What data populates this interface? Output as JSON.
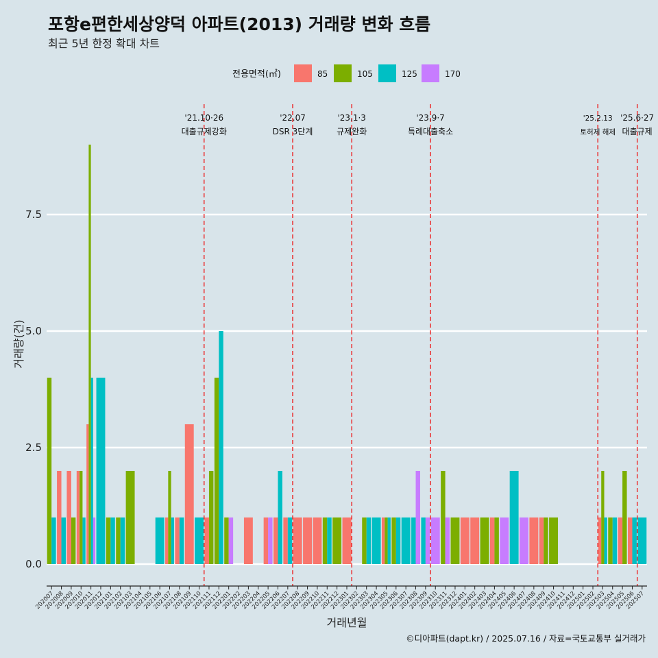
{
  "title": "포항e편한세상양덕 아파트(2013) 거래량 변화 흐름",
  "subtitle": "최근 5년 한정 확대 차트",
  "caption": "©디아파트(dapt.kr) / 2025.07.16 / 자료=국토교통부 실거래가",
  "legend": {
    "title": "전용면적(㎡)",
    "items": [
      {
        "label": "85",
        "color": "#f8766d"
      },
      {
        "label": "105",
        "color": "#7cae00"
      },
      {
        "label": "125",
        "color": "#00bfc4"
      },
      {
        "label": "170",
        "color": "#c77cff"
      }
    ]
  },
  "chart_data": {
    "type": "bar",
    "xlabel": "거래년월",
    "ylabel": "거래량(건)",
    "ylim": [
      -0.4,
      9.4
    ],
    "yticks": [
      "0.0",
      "2.5",
      "5.0",
      "7.5"
    ],
    "ytick_values": [
      0,
      2.5,
      5.0,
      7.5
    ],
    "grid": true,
    "legend_position": "top",
    "categories": [
      "202007",
      "202008",
      "202009",
      "202010",
      "202011",
      "202012",
      "202101",
      "202102",
      "202103",
      "202104",
      "202105",
      "202106",
      "202107",
      "202108",
      "202109",
      "202110",
      "202111",
      "202112",
      "202201",
      "202202",
      "202203",
      "202204",
      "202205",
      "202206",
      "202207",
      "202208",
      "202209",
      "202210",
      "202211",
      "202212",
      "202301",
      "202302",
      "202303",
      "202304",
      "202305",
      "202306",
      "202307",
      "202308",
      "202309",
      "202310",
      "202311",
      "202312",
      "202401",
      "202402",
      "202403",
      "202404",
      "202405",
      "202406",
      "202407",
      "202408",
      "202409",
      "202410",
      "202411",
      "202412",
      "202501",
      "202502",
      "202503",
      "202504",
      "202505",
      "202506",
      "202507"
    ],
    "series": [
      {
        "name": "85",
        "values": [
          0,
          2,
          2,
          2,
          3,
          0,
          0,
          0,
          0,
          0,
          0,
          0,
          1,
          1,
          3,
          0,
          1,
          0,
          0,
          0,
          1,
          0,
          1,
          1,
          1,
          1,
          1,
          1,
          0,
          0,
          1,
          0,
          0,
          0,
          1,
          0,
          0,
          0,
          0,
          0,
          0,
          0,
          1,
          1,
          0,
          1,
          0,
          0,
          0,
          1,
          1,
          0,
          0,
          0,
          0,
          0,
          1,
          0,
          1,
          1,
          0
        ]
      },
      {
        "name": "105",
        "values": [
          4,
          0,
          1,
          2,
          9,
          0,
          1,
          1,
          2,
          0,
          0,
          0,
          2,
          0,
          0,
          0,
          2,
          4,
          1,
          0,
          0,
          0,
          0,
          0,
          0,
          0,
          0,
          0,
          1,
          1,
          0,
          0,
          1,
          0,
          1,
          1,
          0,
          0,
          0,
          0,
          2,
          1,
          0,
          0,
          1,
          1,
          0,
          0,
          0,
          0,
          1,
          1,
          0,
          0,
          0,
          0,
          2,
          1,
          2,
          0,
          0
        ]
      },
      {
        "name": "125",
        "values": [
          1,
          1,
          0,
          1,
          4,
          4,
          1,
          1,
          0,
          0,
          0,
          1,
          1,
          1,
          0,
          1,
          0,
          5,
          0,
          0,
          0,
          0,
          0,
          2,
          1,
          0,
          0,
          0,
          1,
          0,
          0,
          0,
          1,
          1,
          1,
          1,
          1,
          1,
          1,
          0,
          0,
          0,
          0,
          0,
          0,
          0,
          0,
          2,
          0,
          0,
          0,
          0,
          0,
          0,
          0,
          0,
          1,
          1,
          0,
          1,
          1
        ]
      },
      {
        "name": "170",
        "values": [
          0,
          0,
          0,
          0,
          1,
          0,
          0,
          0,
          0,
          0,
          0,
          0,
          0,
          0,
          0,
          0,
          0,
          0,
          1,
          0,
          0,
          0,
          1,
          0,
          0,
          0,
          0,
          0,
          0,
          0,
          0,
          0,
          0,
          0,
          0,
          0,
          0,
          2,
          1,
          1,
          1,
          0,
          0,
          0,
          0,
          0,
          1,
          0,
          1,
          0,
          0,
          0,
          0,
          0,
          0,
          0,
          0,
          0,
          0,
          0,
          0
        ]
      }
    ],
    "annotations": [
      {
        "after_category": "202110",
        "date": "'21.10·26",
        "label": "대출규제강화",
        "small": false
      },
      {
        "after_category": "202207",
        "date": "'22.07",
        "label": "DSR 3단계",
        "small": false
      },
      {
        "after_category": "202301",
        "date": "'23.1·3",
        "label": "규제완화",
        "small": false
      },
      {
        "after_category": "202309",
        "date": "'23.9·7",
        "label": "특례대출축소",
        "small": false
      },
      {
        "after_category": "202502",
        "date": "'25.2.13",
        "label": "토허제 해제",
        "small": true
      },
      {
        "after_category": "202506",
        "date": "'25.6·27",
        "label": "대출규제",
        "small": false
      }
    ]
  }
}
